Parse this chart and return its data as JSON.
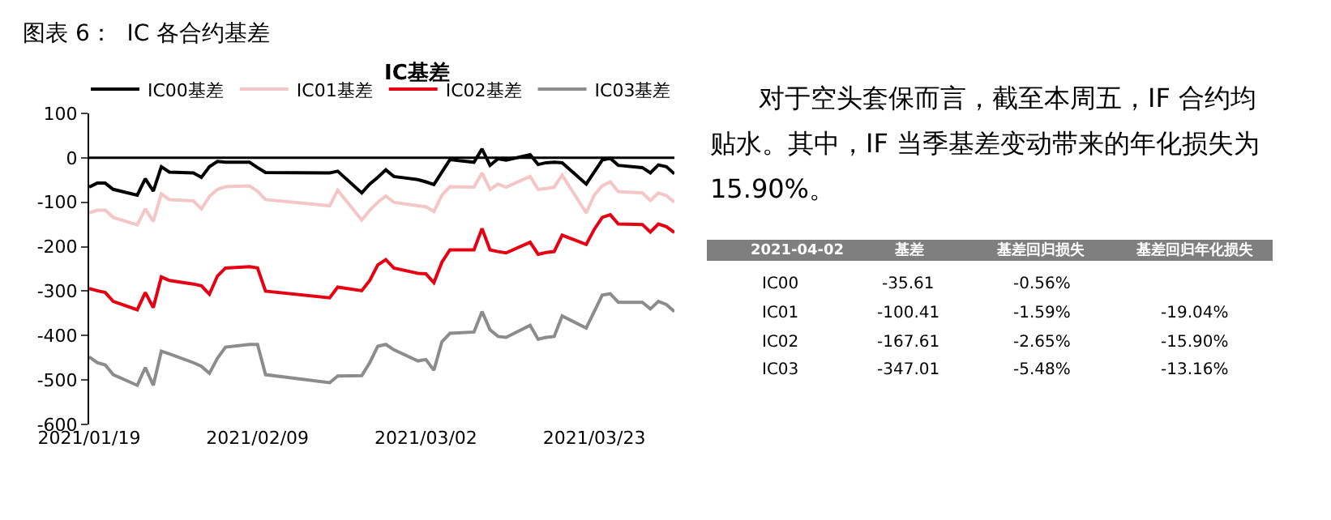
{
  "chart_data": [
    {
      "type": "line",
      "title": "IC基差",
      "annotations": [
        "图表 6：  IC 各合约基差"
      ],
      "x": [
        "2021-01-19",
        "2021-01-20",
        "2021-01-21",
        "2021-01-22",
        "2021-01-25",
        "2021-01-26",
        "2021-01-27",
        "2021-01-28",
        "2021-01-29",
        "2021-02-01",
        "2021-02-02",
        "2021-02-03",
        "2021-02-04",
        "2021-02-05",
        "2021-02-08",
        "2021-02-09",
        "2021-02-10",
        "2021-02-18",
        "2021-02-19",
        "2021-02-22",
        "2021-02-23",
        "2021-02-24",
        "2021-02-25",
        "2021-02-26",
        "2021-03-01",
        "2021-03-02",
        "2021-03-03",
        "2021-03-04",
        "2021-03-05",
        "2021-03-08",
        "2021-03-09",
        "2021-03-10",
        "2021-03-11",
        "2021-03-12",
        "2021-03-15",
        "2021-03-16",
        "2021-03-17",
        "2021-03-18",
        "2021-03-19",
        "2021-03-22",
        "2021-03-23",
        "2021-03-24",
        "2021-03-25",
        "2021-03-26",
        "2021-03-29",
        "2021-03-30",
        "2021-03-31",
        "2021-04-01",
        "2021-04-02"
      ],
      "series": [
        {
          "name": "IC00基差",
          "color": "#000000",
          "values": [
            -66,
            -57,
            -57,
            -71,
            -84,
            -47,
            -75,
            -20,
            -32,
            -34,
            -44,
            -20,
            -8,
            -10,
            -10,
            -22,
            -33,
            -34,
            -30,
            -79,
            -59,
            -44,
            -27,
            -42,
            -49,
            -54,
            -60,
            -32,
            -4,
            -10,
            20,
            -17,
            -2,
            -5,
            7,
            -15,
            -11,
            -10,
            -11,
            -59,
            -32,
            -5,
            -1,
            -17,
            -22,
            -34,
            -16,
            -20,
            -36
          ]
        },
        {
          "name": "IC01基差",
          "color": "#f4c6c6",
          "values": [
            -124,
            -118,
            -118,
            -134,
            -151,
            -115,
            -143,
            -81,
            -94,
            -97,
            -115,
            -87,
            -71,
            -65,
            -63,
            -75,
            -94,
            -108,
            -73,
            -140,
            -118,
            -100,
            -86,
            -100,
            -108,
            -110,
            -121,
            -84,
            -65,
            -66,
            -34,
            -71,
            -59,
            -66,
            -42,
            -71,
            -69,
            -66,
            -39,
            -124,
            -84,
            -63,
            -54,
            -76,
            -79,
            -96,
            -79,
            -85,
            -100
          ]
        },
        {
          "name": "IC02基差",
          "color": "#e60012",
          "values": [
            -294,
            -299,
            -303,
            -323,
            -342,
            -303,
            -337,
            -268,
            -276,
            -284,
            -288,
            -307,
            -266,
            -248,
            -245,
            -248,
            -300,
            -315,
            -291,
            -299,
            -276,
            -241,
            -229,
            -248,
            -260,
            -261,
            -281,
            -235,
            -207,
            -207,
            -159,
            -207,
            -211,
            -214,
            -190,
            -217,
            -213,
            -211,
            -174,
            -195,
            -161,
            -134,
            -128,
            -149,
            -150,
            -167,
            -149,
            -155,
            -168
          ]
        },
        {
          "name": "IC03基差",
          "color": "#8c8c8c",
          "values": [
            -448,
            -461,
            -466,
            -488,
            -512,
            -472,
            -512,
            -435,
            -441,
            -461,
            -469,
            -485,
            -451,
            -426,
            -420,
            -420,
            -488,
            -506,
            -491,
            -490,
            -461,
            -424,
            -420,
            -432,
            -457,
            -454,
            -478,
            -414,
            -395,
            -392,
            -346,
            -387,
            -402,
            -404,
            -377,
            -408,
            -404,
            -402,
            -356,
            -383,
            -346,
            -309,
            -306,
            -325,
            -325,
            -340,
            -323,
            -330,
            -346
          ]
        }
      ],
      "xlim": [
        "2021-01-19",
        "2021-04-02"
      ],
      "xticks": [
        {
          "value": "2021-01-19",
          "label": "2021/01/19"
        },
        {
          "value": "2021-02-09",
          "label": "2021/02/09"
        },
        {
          "value": "2021-03-02",
          "label": "2021/03/02"
        },
        {
          "value": "2021-03-23",
          "label": "2021/03/23"
        }
      ],
      "ylim": [
        -600,
        100
      ],
      "yticks": [
        -600,
        -500,
        -400,
        -300,
        -200,
        -100,
        0,
        100
      ],
      "legend": "top",
      "marker": "none",
      "line_style": "solid"
    },
    {
      "type": "other",
      "annotations": [
        "对于空头套保而言，截至本周五，IF 合约均贴水。其中，IF 当季基差变动带来的年化损失为15.90%。"
      ],
      "categories": [
        "2021-04-02",
        "基差",
        "基差回归损失",
        "基差回归年化损失"
      ],
      "y_categories": [
        "IC00",
        "IC01",
        "IC02",
        "IC03"
      ],
      "cell_labels": [
        [
          "-35.61",
          "-0.56%",
          null
        ],
        [
          "-100.41",
          "-1.59%",
          "-19.04%"
        ],
        [
          "-167.61",
          "-2.65%",
          "-15.90%"
        ],
        [
          "-347.01",
          "-5.48%",
          "-13.16%"
        ]
      ]
    }
  ]
}
